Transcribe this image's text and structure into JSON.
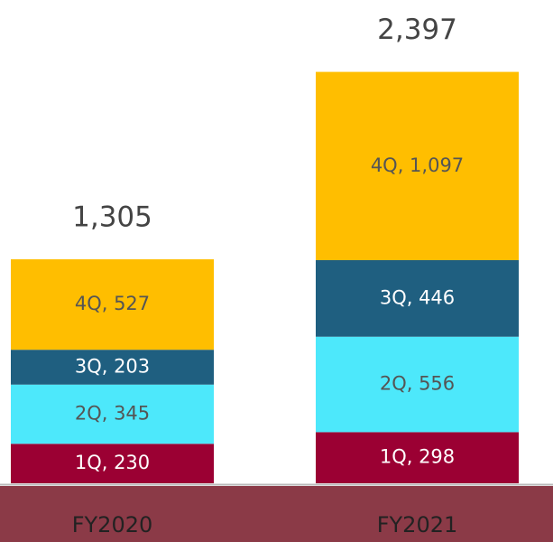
{
  "chart_data": {
    "type": "stacked_bar",
    "categories": [
      "FY2020",
      "FY2021"
    ],
    "series": [
      {
        "name": "1Q",
        "color": "#9b0033",
        "values": [
          230,
          298
        ],
        "value_labels": [
          "1Q, 230",
          "1Q, 298"
        ]
      },
      {
        "name": "2Q",
        "color": "#4de8fb",
        "values": [
          345,
          556
        ],
        "value_labels": [
          "2Q, 345",
          "2Q, 556"
        ]
      },
      {
        "name": "3Q",
        "color": "#1f5f80",
        "values": [
          203,
          446
        ],
        "value_labels": [
          "3Q, 203",
          "3Q, 446"
        ]
      },
      {
        "name": "4Q",
        "color": "#ffbe00",
        "values": [
          527,
          1097
        ],
        "value_labels": [
          "4Q, 527",
          "4Q, 1,097"
        ]
      }
    ],
    "totals": [
      1305,
      2397
    ],
    "total_labels": [
      "1,305",
      "2,397"
    ],
    "category_band_color": "#8b3a47"
  }
}
